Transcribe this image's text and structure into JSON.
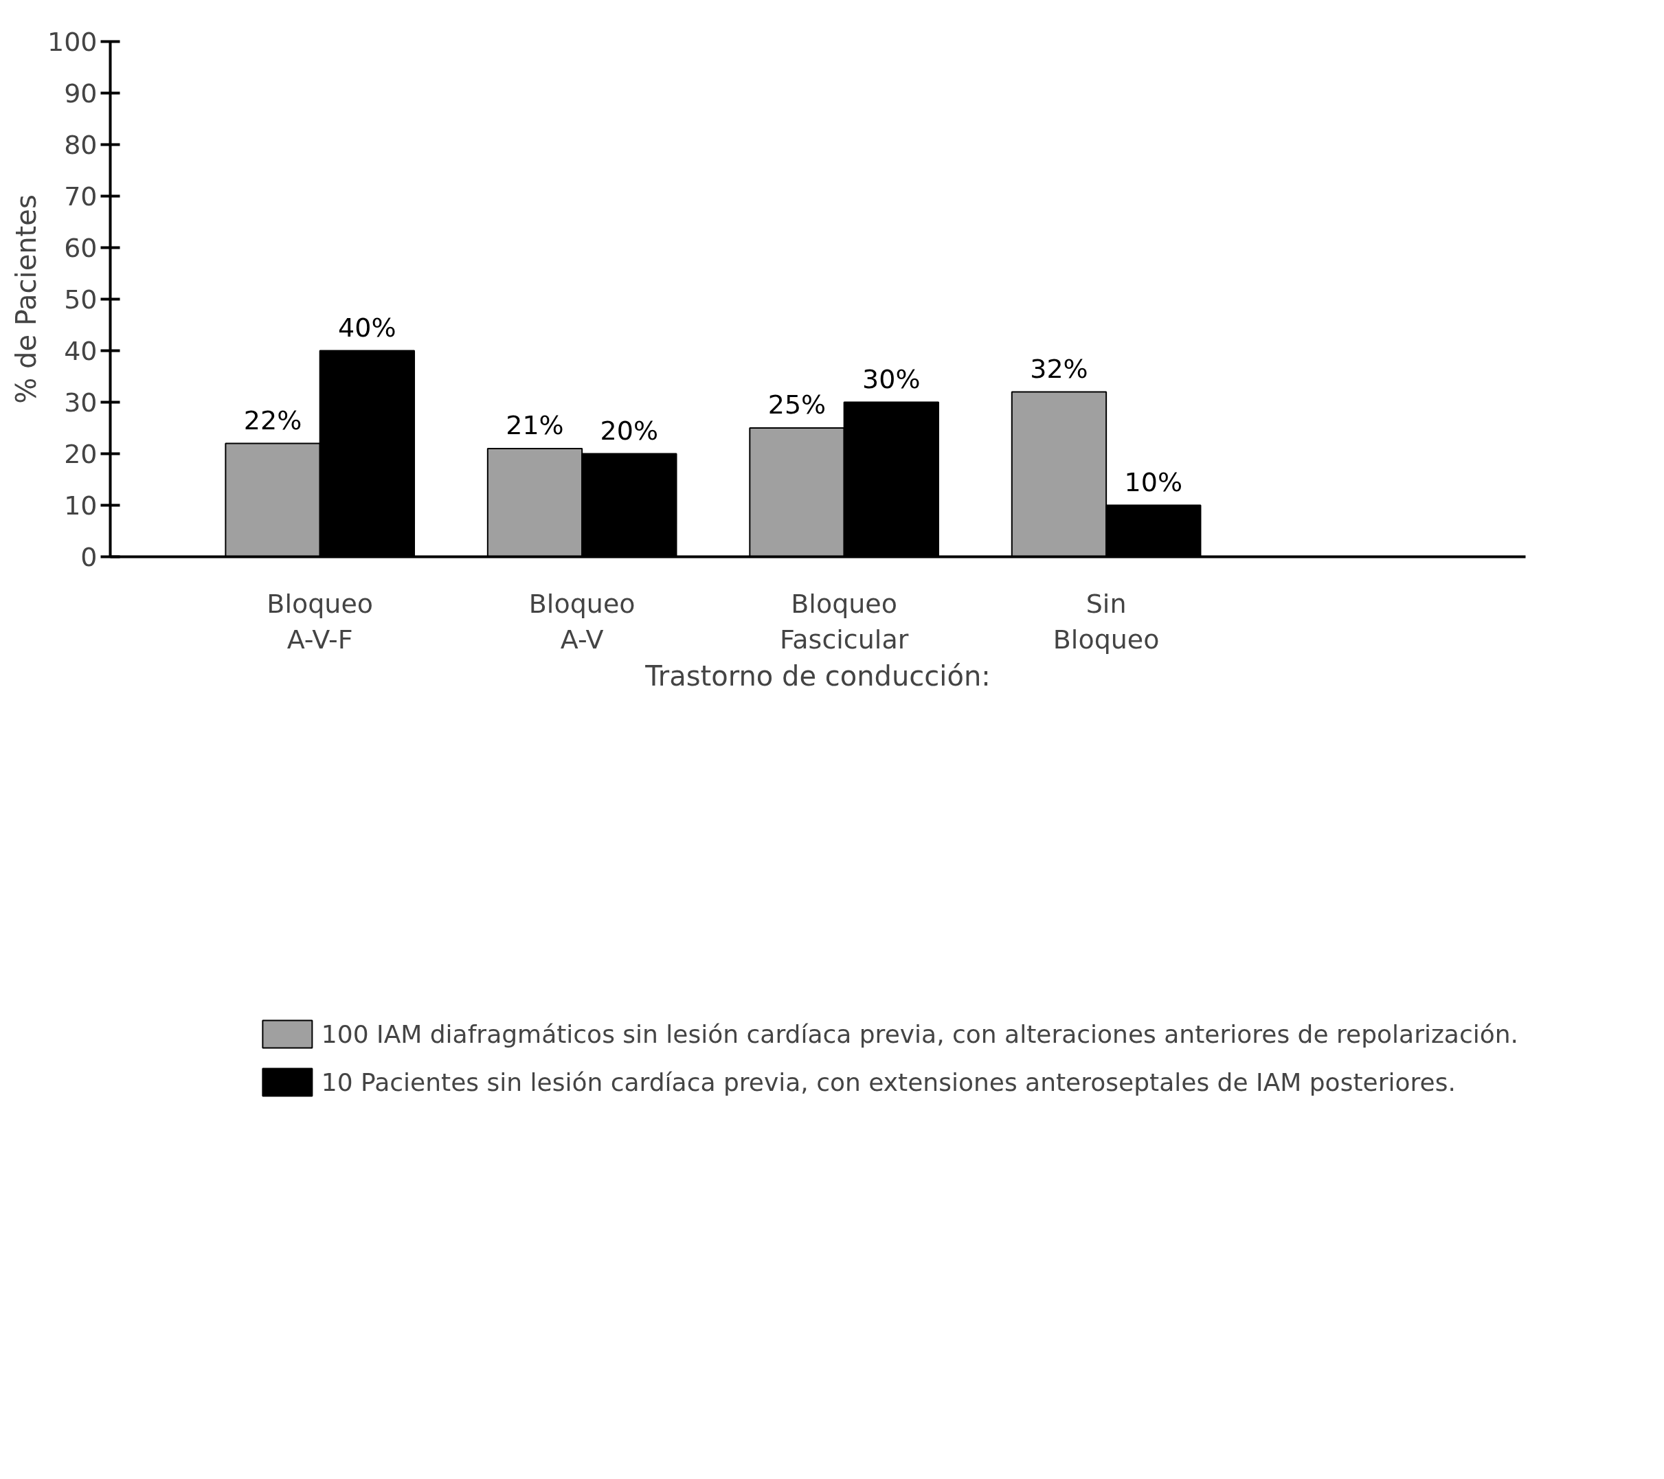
{
  "chart_data": {
    "type": "bar",
    "ylabel": "% de Pacientes",
    "xlabel": "Trastorno de conducción:",
    "categories": [
      "Bloqueo\nA-V-F",
      "Bloqueo\nA-V",
      "Bloqueo\nFascicular",
      "Sin\nBloqueo"
    ],
    "series": [
      {
        "name": "100 IAM diafragmáticos sin lesión cardíaca previa, con alteraciones anteriores de repolarización.",
        "color": "#a0a0a0",
        "values": [
          22,
          21,
          25,
          32
        ],
        "value_labels": [
          "22%",
          "21%",
          "25%",
          "32%"
        ]
      },
      {
        "name": "10 Pacientes sin lesión cardíaca previa, con extensiones anteroseptales de IAM posteriores.",
        "color": "#000000",
        "values": [
          40,
          20,
          30,
          10
        ],
        "value_labels": [
          "40%",
          "20%",
          "30%",
          "10%"
        ]
      }
    ],
    "ylim": [
      0,
      100
    ],
    "yticks": [
      0,
      10,
      20,
      30,
      40,
      50,
      60,
      70,
      80,
      90,
      100
    ],
    "grid": false,
    "legend": "bottom"
  }
}
